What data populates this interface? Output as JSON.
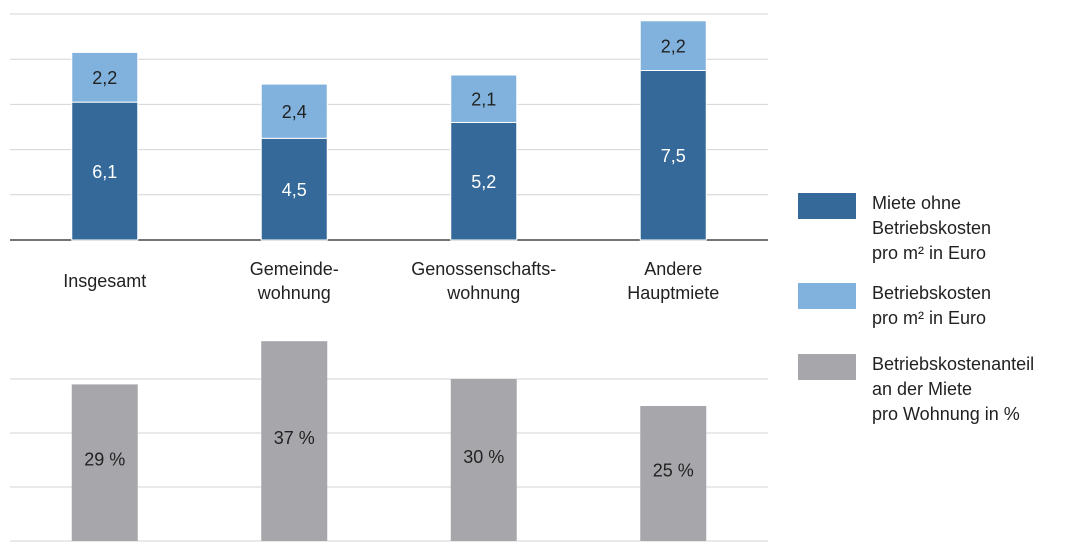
{
  "chart_data": [
    {
      "type": "stacked_bar",
      "categories": [
        "Insgesamt",
        "Gemeinde-\nwohnung",
        "Genossenschafts-\nwohnung",
        "Andere\nHauptmiete"
      ],
      "series": [
        {
          "name": "Miete ohne\nBetriebskosten\npro m² in Euro",
          "color": "#35699a",
          "label_color": "#ffffff",
          "values": [
            6.1,
            4.5,
            5.2,
            7.5
          ],
          "value_labels": [
            "6,1",
            "4,5",
            "5,2",
            "7,5"
          ]
        },
        {
          "name": "Betriebskosten\npro m² in Euro",
          "color": "#80b2dd",
          "label_color": "#222222",
          "values": [
            2.2,
            2.4,
            2.1,
            2.2
          ],
          "value_labels": [
            "2,2",
            "2,4",
            "2,1",
            "2,2"
          ]
        }
      ],
      "ylim": [
        0,
        10
      ],
      "yticks": [
        0,
        2,
        4,
        6,
        8,
        10
      ],
      "grid": true
    },
    {
      "type": "bar",
      "series": [
        {
          "name": "Betriebskostenanteil\nan der Miete\npro Wohnung in %",
          "color": "#a7a7ab",
          "label_color": "#222222",
          "values": [
            29,
            37,
            30,
            25
          ],
          "value_labels": [
            "29 %",
            "37 %",
            "30 %",
            "25 %"
          ]
        }
      ],
      "ylim": [
        0,
        40
      ],
      "yticks": [
        0,
        10,
        20,
        30
      ],
      "grid": true
    }
  ]
}
